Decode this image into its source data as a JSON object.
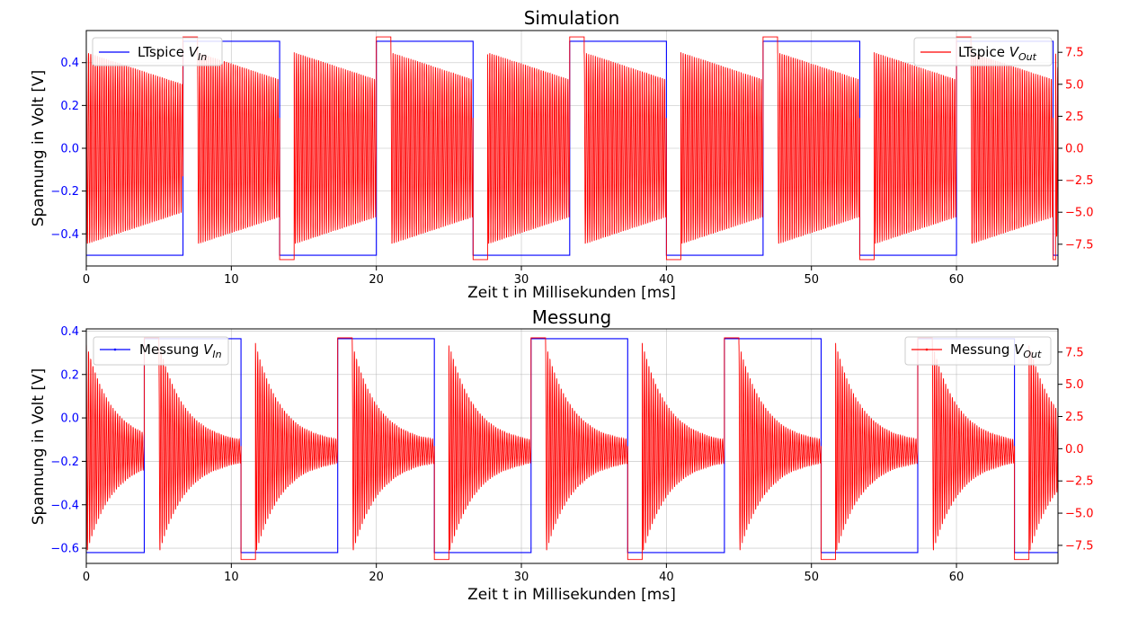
{
  "colors": {
    "vin": "#0000ff",
    "vout": "#ff0000",
    "axis": "#000000",
    "grid": "#b0b0b0"
  },
  "chart_data": [
    {
      "type": "line",
      "title": "Simulation",
      "xlabel": "Zeit t in Millisekunden [ms]",
      "ylabel": "Spannung in Volt [V]",
      "xlim": [
        0,
        67
      ],
      "ylim_left": [
        -0.55,
        0.55
      ],
      "ylim_right": [
        -9.2,
        9.2
      ],
      "grid": true,
      "x_ticks": [
        "0",
        "10",
        "20",
        "30",
        "40",
        "50",
        "60"
      ],
      "y_left_ticks": [
        "−0.4",
        "−0.2",
        "0.0",
        "0.2",
        "0.4"
      ],
      "y_right_ticks": [
        "−7.5",
        "−5.0",
        "−2.5",
        "0.0",
        "2.5",
        "5.0",
        "7.5"
      ],
      "legend_left": {
        "placement": "top-left",
        "text": "LTspice ",
        "var": "V",
        "sub": "In"
      },
      "legend_right": {
        "placement": "top-right",
        "text": "LTspice ",
        "var": "V",
        "sub": "Out"
      },
      "series": [
        {
          "name": "LTspice V_In",
          "axis": "left",
          "kind": "square",
          "low": -0.5,
          "high": 0.5,
          "period": 13.333,
          "high_starts": [
            6.667,
            20.0,
            33.333,
            46.667,
            60.0
          ],
          "low_starts": [
            0,
            13.333,
            26.667,
            40.0,
            53.333,
            66.667
          ]
        },
        {
          "name": "LTspice V_Out",
          "axis": "right",
          "kind": "burst",
          "start_amplitude": 7.5,
          "end_amplitude": 5.0,
          "rail": 8.7,
          "rail_duration": 1.0,
          "oscillation_frequency_khz": 6.5
        }
      ]
    },
    {
      "type": "line",
      "title": "Messung",
      "xlabel": "Zeit t in Millisekunden [ms]",
      "ylabel": "Spannung in Volt [V]",
      "xlim": [
        0,
        67
      ],
      "ylim_left": [
        -0.67,
        0.41
      ],
      "ylim_right": [
        -8.9,
        9.3
      ],
      "grid": true,
      "x_ticks": [
        "0",
        "10",
        "20",
        "30",
        "40",
        "50",
        "60"
      ],
      "y_left_ticks": [
        "−0.6",
        "−0.4",
        "−0.2",
        "0.0",
        "0.2",
        "0.4"
      ],
      "y_right_ticks": [
        "−7.5",
        "−5.0",
        "−2.5",
        "0.0",
        "2.5",
        "5.0",
        "7.5"
      ],
      "legend_left": {
        "placement": "top-left",
        "text": "Messung ",
        "var": "V",
        "sub": "In"
      },
      "legend_right": {
        "placement": "top-right",
        "text": "Messung ",
        "var": "V",
        "sub": "Out"
      },
      "series": [
        {
          "name": "Messung V_In",
          "axis": "left",
          "kind": "square",
          "low": -0.62,
          "high": 0.365,
          "period": 13.333,
          "high_starts": [
            4.0,
            17.333,
            30.667,
            44.0,
            57.333
          ],
          "low_starts": [
            0,
            10.667,
            24.0,
            37.333,
            50.667,
            64.0
          ]
        },
        {
          "name": "Messung V_Out",
          "axis": "right",
          "kind": "decay",
          "start_amplitude": 8.2,
          "settle_level": -0.2,
          "settle_amplitude": 0.6,
          "rail": 8.6,
          "rail_duration": 1.0,
          "oscillation_frequency_khz": 6.5
        }
      ]
    }
  ]
}
